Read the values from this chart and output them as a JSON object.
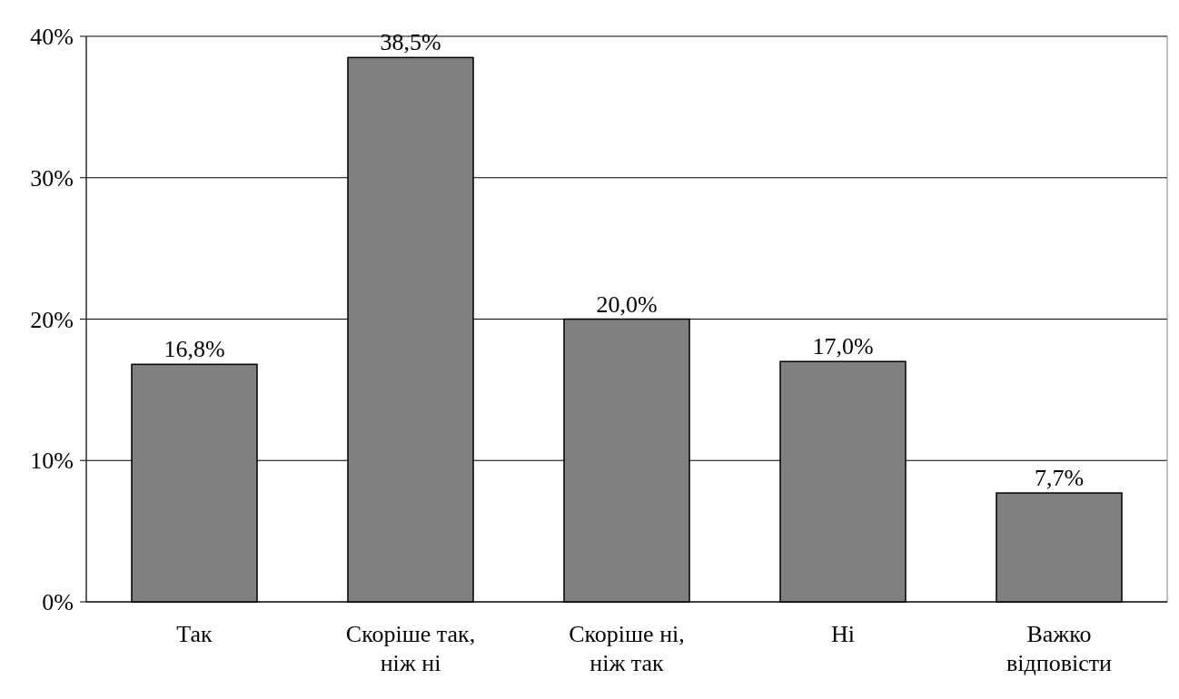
{
  "chart_data": {
    "type": "bar",
    "categories": [
      "Так",
      "Скоріше так, ніж ні",
      "Скоріше ні, ніж так",
      "Ні",
      "Важко відповісти"
    ],
    "values": [
      16.8,
      38.5,
      20.0,
      17.0,
      7.7
    ],
    "value_labels": [
      "16,8%",
      "38,5%",
      "20,0%",
      "17,0%",
      "7,7%"
    ],
    "color": "#808080",
    "ylim": [
      0,
      40
    ],
    "yticks": [
      {
        "value": 0,
        "label": "0%"
      },
      {
        "value": 10,
        "label": "10%"
      },
      {
        "value": 20,
        "label": "20%"
      },
      {
        "value": 30,
        "label": "30%"
      },
      {
        "value": 40,
        "label": "40%"
      }
    ],
    "grid": "y"
  }
}
